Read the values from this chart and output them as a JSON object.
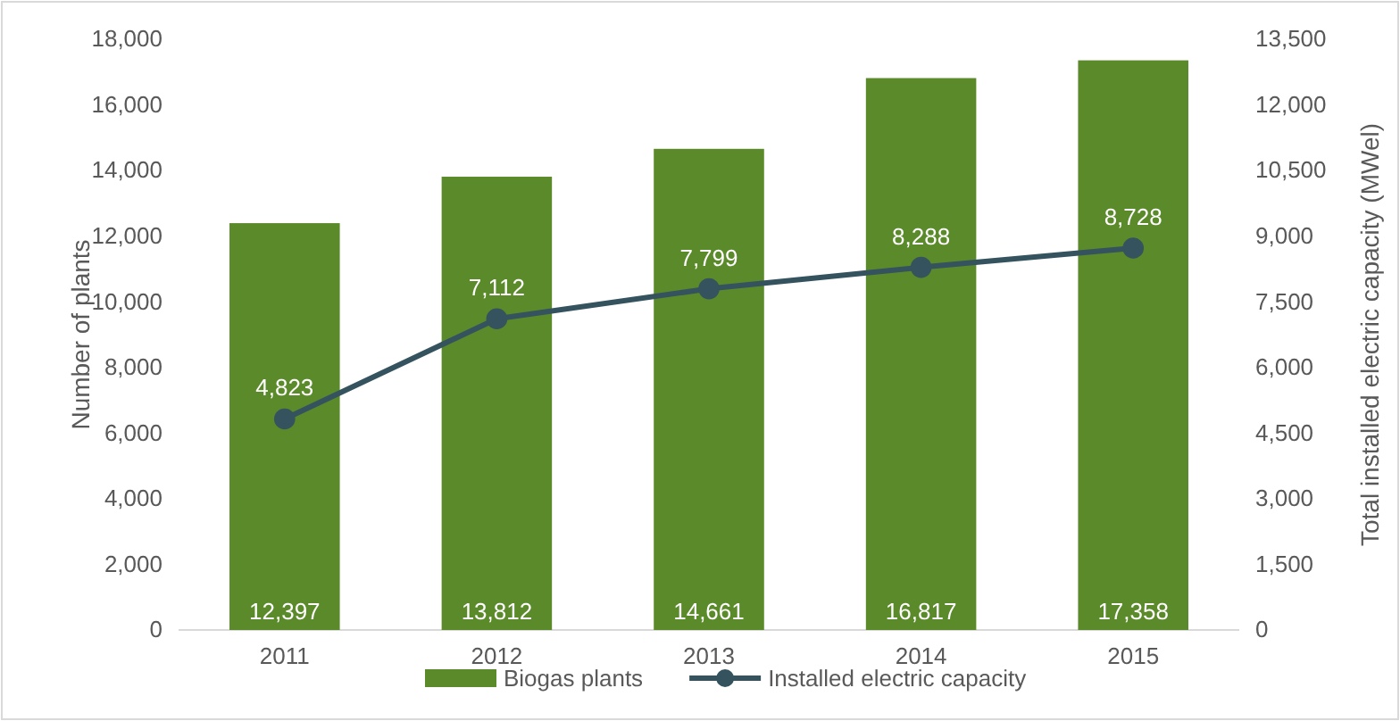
{
  "chart_data": {
    "type": "bar",
    "categories": [
      "2011",
      "2012",
      "2013",
      "2014",
      "2015"
    ],
    "ylabel": "Number of plants",
    "y2label": "Total installed electric capacity (MWel)",
    "series": [
      {
        "name": "Biogas plants",
        "color": "#5b8a2b",
        "values": [
          12397,
          13812,
          14661,
          16817,
          17358
        ],
        "value_labels": [
          "12,397",
          "13,812",
          "14,661",
          "16,817",
          "17,358"
        ]
      },
      {
        "name": "Installed electric capacity",
        "type": "line",
        "axis": "y2",
        "color": "#34535f",
        "values": [
          4823,
          7112,
          7799,
          8288,
          8728
        ],
        "value_labels": [
          "4,823",
          "7,112",
          "7,799",
          "8,288",
          "8,728"
        ]
      }
    ],
    "ylim": [
      0,
      18000
    ],
    "yticks": [
      {
        "value": 0,
        "label": "0"
      },
      {
        "value": 2000,
        "label": "2,000"
      },
      {
        "value": 4000,
        "label": "4,000"
      },
      {
        "value": 6000,
        "label": "6,000"
      },
      {
        "value": 8000,
        "label": "8,000"
      },
      {
        "value": 10000,
        "label": "10,000"
      },
      {
        "value": 12000,
        "label": "12,000"
      },
      {
        "value": 14000,
        "label": "14,000"
      },
      {
        "value": 16000,
        "label": "16,000"
      },
      {
        "value": 18000,
        "label": "18,000"
      }
    ],
    "y2lim": [
      0,
      13500
    ],
    "y2ticks": [
      {
        "value": 0,
        "label": "0"
      },
      {
        "value": 1500,
        "label": "1,500"
      },
      {
        "value": 3000,
        "label": "3,000"
      },
      {
        "value": 4500,
        "label": "4,500"
      },
      {
        "value": 6000,
        "label": "6,000"
      },
      {
        "value": 7500,
        "label": "7,500"
      },
      {
        "value": 9000,
        "label": "9,000"
      },
      {
        "value": 10500,
        "label": "10,500"
      },
      {
        "value": 12000,
        "label": "12,000"
      },
      {
        "value": 13500,
        "label": "13,500"
      }
    ],
    "marker": "circle",
    "legend": "bottom",
    "grid": false
  }
}
